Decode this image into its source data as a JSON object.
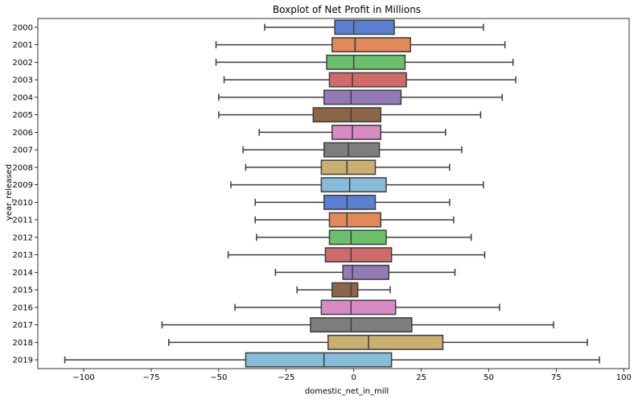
{
  "chart_data": {
    "type": "boxplot",
    "orientation": "horizontal",
    "title": "Boxplot of Net Profit in Millions",
    "xlabel": "domestic_net_in_mill",
    "ylabel": "year_released",
    "xlim": [
      -117,
      102
    ],
    "xticks": [
      -100,
      -75,
      -50,
      -25,
      0,
      25,
      50,
      75,
      100
    ],
    "xtick_labels": [
      "−100",
      "−75",
      "−50",
      "−25",
      "0",
      "25",
      "50",
      "75",
      "100"
    ],
    "grid": false,
    "categories": [
      "2000",
      "2001",
      "2002",
      "2003",
      "2004",
      "2005",
      "2006",
      "2007",
      "2008",
      "2009",
      "2010",
      "2011",
      "2012",
      "2013",
      "2014",
      "2015",
      "2016",
      "2017",
      "2018",
      "2019"
    ],
    "boxes": [
      {
        "category": "2000",
        "whislo": -33,
        "q1": -7,
        "median": 0,
        "q3": 15,
        "whishi": 48,
        "color": "#5a7fd0"
      },
      {
        "category": "2001",
        "whislo": -51,
        "q1": -8,
        "median": 0.5,
        "q3": 21,
        "whishi": 56,
        "color": "#e1895a"
      },
      {
        "category": "2002",
        "whislo": -51,
        "q1": -10,
        "median": 0,
        "q3": 19,
        "whishi": 59,
        "color": "#6cbf6b"
      },
      {
        "category": "2003",
        "whislo": -48,
        "q1": -9,
        "median": -0.5,
        "q3": 19.5,
        "whishi": 60,
        "color": "#cf6b6b"
      },
      {
        "category": "2004",
        "whislo": -50,
        "q1": -11,
        "median": -1,
        "q3": 17.5,
        "whishi": 55,
        "color": "#9379b6"
      },
      {
        "category": "2005",
        "whislo": -50,
        "q1": -15,
        "median": -1,
        "q3": 10,
        "whishi": 47,
        "color": "#8c6546"
      },
      {
        "category": "2006",
        "whislo": -35,
        "q1": -8,
        "median": -0.5,
        "q3": 10,
        "whishi": 34,
        "color": "#d68bc4"
      },
      {
        "category": "2007",
        "whislo": -41,
        "q1": -11,
        "median": -2,
        "q3": 9.5,
        "whishi": 40,
        "color": "#7d7d7d"
      },
      {
        "category": "2008",
        "whislo": -40,
        "q1": -12,
        "median": -2.5,
        "q3": 8,
        "whishi": 35.5,
        "color": "#c9b070"
      },
      {
        "category": "2009",
        "whislo": -45.5,
        "q1": -12,
        "median": -1.5,
        "q3": 12,
        "whishi": 48,
        "color": "#87bcd8"
      },
      {
        "category": "2010",
        "whislo": -36.5,
        "q1": -11,
        "median": -2.5,
        "q3": 8,
        "whishi": 35.5,
        "color": "#5a7fd0"
      },
      {
        "category": "2011",
        "whislo": -36.5,
        "q1": -9,
        "median": -2.5,
        "q3": 10,
        "whishi": 37,
        "color": "#e1895a"
      },
      {
        "category": "2012",
        "whislo": -36,
        "q1": -9,
        "median": -1,
        "q3": 12,
        "whishi": 43.5,
        "color": "#6cbf6b"
      },
      {
        "category": "2013",
        "whislo": -46.5,
        "q1": -10.5,
        "median": -1,
        "q3": 14,
        "whishi": 48.5,
        "color": "#cf6b6b"
      },
      {
        "category": "2014",
        "whislo": -29,
        "q1": -4,
        "median": -0.5,
        "q3": 13,
        "whishi": 37.5,
        "color": "#9379b6"
      },
      {
        "category": "2015",
        "whislo": -21,
        "q1": -8,
        "median": -1,
        "q3": 1.5,
        "whishi": 13.5,
        "color": "#8c6546"
      },
      {
        "category": "2016",
        "whislo": -44,
        "q1": -12,
        "median": -1,
        "q3": 15.5,
        "whishi": 54,
        "color": "#d68bc4"
      },
      {
        "category": "2017",
        "whislo": -71,
        "q1": -16,
        "median": -1,
        "q3": 21.5,
        "whishi": 74,
        "color": "#7d7d7d"
      },
      {
        "category": "2018",
        "whislo": -68.5,
        "q1": -9.5,
        "median": 5.5,
        "q3": 33,
        "whishi": 86.5,
        "color": "#c9b070"
      },
      {
        "category": "2019",
        "whislo": -107,
        "q1": -40,
        "median": -11,
        "q3": 14,
        "whishi": 91,
        "color": "#87bcd8"
      }
    ],
    "line_color": "#3d3d3d"
  }
}
